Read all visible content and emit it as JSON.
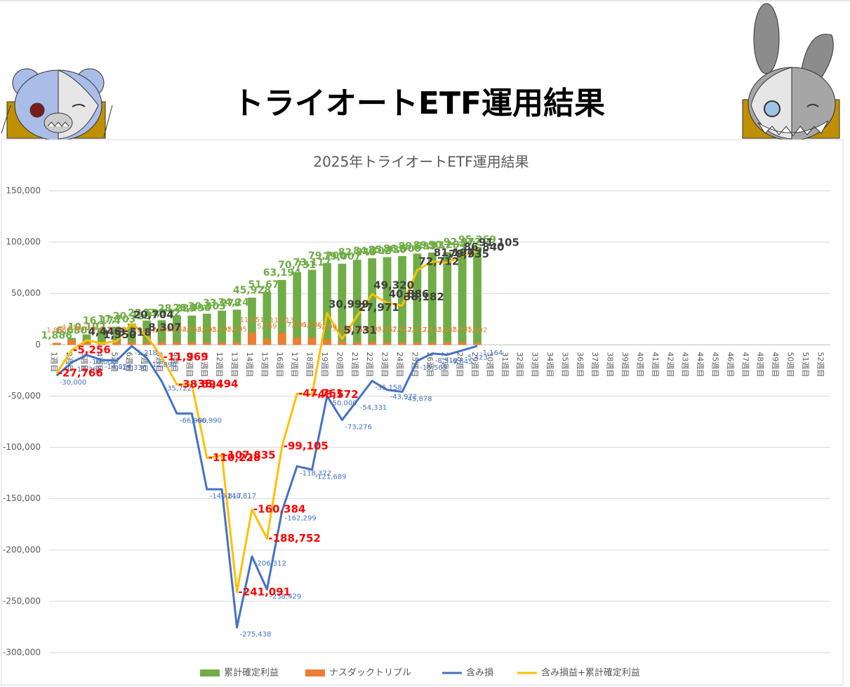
{
  "header": {
    "title": "トライオートETF運用結果"
  },
  "chart_data": {
    "type": "combo",
    "title": "2025年トライオートETF運用結果",
    "categories": [
      "1週目",
      "2週目",
      "3週目",
      "4週目",
      "5週目",
      "6週目",
      "7週目",
      "8週目",
      "9週目",
      "10週目",
      "11週目",
      "12週目",
      "13週目",
      "14週目",
      "15週目",
      "16週目",
      "17週目",
      "18週目",
      "19週目",
      "20週目",
      "21週目",
      "22週目",
      "23週目",
      "24週目",
      "25週目",
      "26週目",
      "27週目",
      "28週目",
      "29週目",
      "30週目",
      "31週目",
      "32週目",
      "33週目",
      "34週目",
      "35週目",
      "36週目",
      "37週目",
      "38週目",
      "39週目",
      "40週目",
      "41週目",
      "42週目",
      "43週目",
      "44週目",
      "45週目",
      "46週目",
      "47週目",
      "48週目",
      "49週目",
      "50週目",
      "51週目",
      "52週目"
    ],
    "ylim": [
      -300000,
      150000
    ],
    "yticks": [
      {
        "value": -300000,
        "label": "-300,000"
      },
      {
        "value": -250000,
        "label": "-250,000"
      },
      {
        "value": -200000,
        "label": "-200,000"
      },
      {
        "value": -150000,
        "label": "-150,000"
      },
      {
        "value": -100000,
        "label": "-100,000"
      },
      {
        "value": -50000,
        "label": "-50,000"
      },
      0,
      {
        "value": 50000,
        "label": "50,000"
      },
      {
        "value": 100000,
        "label": "100,000"
      },
      {
        "value": 150000,
        "label": "150,000"
      }
    ],
    "grid": true,
    "legend": "bottom",
    "negative_label_color": "#ff0000",
    "series": [
      {
        "name": "累計確定利益",
        "kind": "bar",
        "color": "#70ad47",
        "values": [
          1886,
          6680,
          10102,
          16174,
          17703,
          20723,
          23690,
          23932,
          28285,
          28496,
          30303,
          33278,
          34247,
          45928,
          51677,
          63194,
          70731,
          73117,
          79700,
          79007,
          82848,
          84302,
          85436,
          86500,
          88893,
          89937,
          90284,
          92972,
          95269,
          null,
          null,
          null,
          null,
          null,
          null,
          null,
          null,
          null,
          null,
          null,
          null,
          null,
          null,
          null,
          null,
          null,
          null,
          null,
          null,
          null,
          null,
          null
        ],
        "value_labels": [
          "1,886",
          "6,680",
          "10,102",
          "16,174",
          "17,703",
          "20,723",
          "23,690",
          "23,932",
          "28,285",
          "28,496",
          "30,303",
          "33,278",
          "34,247",
          "45,928",
          "51,677",
          "63,194",
          "70,731",
          "73,117",
          "79,700",
          "79,007",
          "82,848",
          "84,302",
          "85,436",
          "86,500",
          "88,893",
          "89,937",
          "90,284",
          "92,972",
          "95,269",
          null,
          null,
          null,
          null,
          null,
          null,
          null,
          null,
          null,
          null,
          null,
          null,
          null,
          null,
          null,
          null,
          null,
          null,
          null,
          null,
          null,
          null,
          null
        ]
      },
      {
        "name": "ナスダックトリプル",
        "kind": "bar",
        "color": "#ed7d31",
        "values": [
          1886,
          4652,
          2727,
          2455,
          2388,
          2574,
          2012,
          2864,
          2654,
          2654,
          2395,
          2495,
          2495,
          11851,
          5749,
          11413,
          7001,
          6986,
          5290,
          3195,
          2569,
          2695,
          2567,
          2417,
          2317,
          2145,
          2445,
          2585,
          1802,
          null,
          null,
          null,
          null,
          null,
          null,
          null,
          null,
          null,
          null,
          null,
          null,
          null,
          null,
          null,
          null,
          null,
          null,
          null,
          null,
          null,
          null,
          null
        ],
        "value_labels": [
          "1,886",
          "4,652",
          "2,727",
          "2,455",
          "2,388",
          "2,574",
          "2,012",
          "2,864",
          "2,654",
          "2,654",
          "2,395",
          "2,495",
          "2,495",
          "11,851",
          "5,749",
          "11,413",
          "7,001",
          "6,986",
          "5,290",
          "3,195",
          "2,569",
          "2,695",
          "2,567",
          "2,417",
          "2,317",
          "2,145",
          "2,445",
          "2,585",
          "1,802",
          null,
          null,
          null,
          null,
          null,
          null,
          null,
          null,
          null,
          null,
          null,
          null,
          null,
          null,
          null,
          null,
          null,
          null,
          null,
          null,
          null,
          null,
          null
        ]
      },
      {
        "name": "含み損",
        "kind": "line",
        "color": "#4472c4",
        "values": [
          -30000,
          -17265,
          -10000,
          -14824,
          -15336,
          -1218,
          -12890,
          -35722,
          -66990,
          -66990,
          -140817,
          -140817,
          -275438,
          -206312,
          -238429,
          -162299,
          -118372,
          -121689,
          -50000,
          -73276,
          -54331,
          -35158,
          -43972,
          -45878,
          -15565,
          -8519,
          -9645,
          -5423,
          -1164,
          null,
          null,
          null,
          null,
          null,
          null,
          null,
          null,
          null,
          null,
          null,
          null,
          null,
          null,
          null,
          null,
          null,
          null,
          null,
          null,
          null,
          null,
          null
        ],
        "value_labels": [
          "-30,000",
          "-17,265",
          "-10,000",
          "-14,824",
          "-15,336",
          "-1,218",
          "-12,890",
          "-35,722",
          "-66,990",
          "-66,990",
          "-140,817",
          "-140,817",
          "-275,438",
          "-206,312",
          "-238,429",
          "-162,299",
          "-118,372",
          "-121,689",
          "-50,000",
          "-73,276",
          "-54,331",
          "-35,158",
          "-43,972",
          "-45,878",
          "-15,565",
          "-8,519",
          "-9,645",
          "-5,423",
          "-1,164",
          null,
          null,
          null,
          null,
          null,
          null,
          null,
          null,
          null,
          null,
          null,
          null,
          null,
          null,
          null,
          null,
          null,
          null,
          null,
          null,
          null,
          null,
          null
        ]
      },
      {
        "name": "含み損益+累計確定利益",
        "kind": "line",
        "color": "#ffc000",
        "values": [
          -27766,
          -5256,
          4446,
          1350,
          3518,
          20704,
          8307,
          -11969,
          -38694,
          -38494,
          -110228,
          -107835,
          -241091,
          -160384,
          -188752,
          -99105,
          -47761,
          -48572,
          30999,
          5731,
          27971,
          49320,
          40886,
          38182,
          72712,
          81197,
          79935,
          86840,
          91105,
          null,
          null,
          null,
          null,
          null,
          null,
          null,
          null,
          null,
          null,
          null,
          null,
          null,
          null,
          null,
          null,
          null,
          null,
          null,
          null,
          null,
          null,
          null
        ],
        "value_labels": [
          "-27,766",
          "-5,256",
          "4,446",
          "1,350",
          "3,518",
          "20,704",
          "8,307",
          "-11,969",
          "-38,694",
          "-38,494",
          "-110,228",
          "-107,835",
          "-241,091",
          "-160,384",
          "-188,752",
          "-99,105",
          "-47,761",
          "-48,572",
          "30,999",
          "5,731",
          "27,971",
          "49,320",
          "40,886",
          "38,182",
          "72,712",
          "81,197",
          "79,935",
          "86,840",
          "91,105",
          null,
          null,
          null,
          null,
          null,
          null,
          null,
          null,
          null,
          null,
          null,
          null,
          null,
          null,
          null,
          null,
          null,
          null,
          null,
          null,
          null,
          null,
          null
        ]
      }
    ]
  }
}
